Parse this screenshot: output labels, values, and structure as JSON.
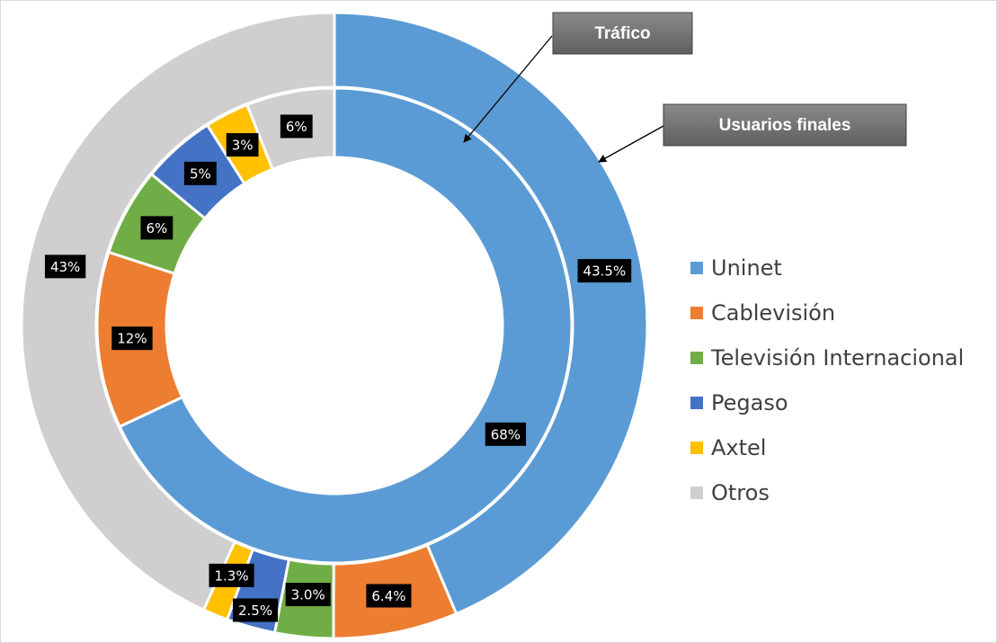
{
  "chart_data": {
    "type": "donut",
    "categories": [
      "Uninet",
      "Cablevisión",
      "Televisión Internacional",
      "Pegaso",
      "Axtel",
      "Otros"
    ],
    "colors": [
      "#5b9bd5",
      "#ed7d31",
      "#70ad47",
      "#4472c4",
      "#ffc000",
      "#d0cece"
    ],
    "series": [
      {
        "name": "Usuarios finales",
        "values": [
          43.5,
          6.4,
          3.0,
          2.5,
          1.3,
          43
        ],
        "value_labels": [
          "43.5%",
          "6.4%",
          "3.0%",
          "2.5%",
          "1.3%",
          "43%"
        ]
      },
      {
        "name": "Tráfico",
        "values": [
          68,
          12,
          6,
          5,
          3,
          6
        ],
        "value_labels": [
          "68%",
          "12%",
          "6%",
          "5%",
          "3%",
          "6%"
        ]
      }
    ],
    "legend": "right"
  }
}
